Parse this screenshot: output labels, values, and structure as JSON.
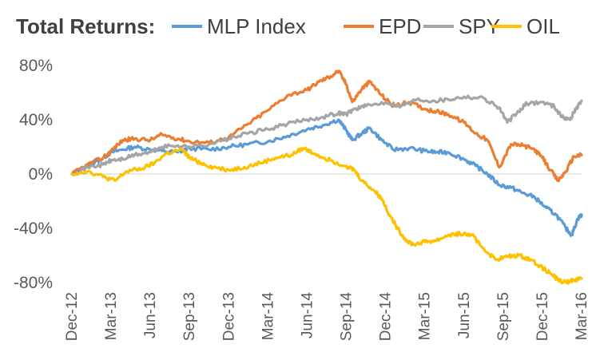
{
  "chart_data": {
    "type": "line",
    "title": "Total Returns:",
    "xlabel": "",
    "ylabel": "",
    "ylim": [
      -0.8,
      0.8
    ],
    "y_ticks": [
      {
        "value": 0.8,
        "label": "80%"
      },
      {
        "value": 0.4,
        "label": "40%"
      },
      {
        "value": 0.0,
        "label": "0%"
      },
      {
        "value": -0.4,
        "label": "-40%"
      },
      {
        "value": -0.8,
        "label": "-80%"
      }
    ],
    "x_ticks": [
      "Dec-12",
      "Mar-13",
      "Jun-13",
      "Sep-13",
      "Dec-13",
      "Mar-14",
      "Jun-14",
      "Sep-14",
      "Dec-14",
      "Mar-15",
      "Jun-15",
      "Sep-15",
      "Dec-15",
      "Mar-16"
    ],
    "x_range": [
      0,
      13
    ],
    "grid": false,
    "legend_position": "top",
    "series": [
      {
        "name": "MLP Index",
        "color": "#5B9BD5",
        "points": [
          [
            0,
            0.0
          ],
          [
            0.4,
            0.06
          ],
          [
            0.8,
            0.12
          ],
          [
            1.0,
            0.16
          ],
          [
            1.3,
            0.18
          ],
          [
            1.6,
            0.2
          ],
          [
            2.0,
            0.18
          ],
          [
            2.3,
            0.17
          ],
          [
            2.7,
            0.16
          ],
          [
            3.0,
            0.19
          ],
          [
            3.5,
            0.18
          ],
          [
            4.0,
            0.2
          ],
          [
            4.5,
            0.22
          ],
          [
            5.0,
            0.24
          ],
          [
            5.5,
            0.28
          ],
          [
            6.0,
            0.33
          ],
          [
            6.4,
            0.36
          ],
          [
            6.8,
            0.4
          ],
          [
            7.0,
            0.32
          ],
          [
            7.15,
            0.25
          ],
          [
            7.4,
            0.3
          ],
          [
            7.6,
            0.34
          ],
          [
            7.9,
            0.25
          ],
          [
            8.2,
            0.18
          ],
          [
            8.6,
            0.19
          ],
          [
            9.0,
            0.17
          ],
          [
            9.3,
            0.16
          ],
          [
            9.6,
            0.16
          ],
          [
            10.0,
            0.11
          ],
          [
            10.3,
            0.06
          ],
          [
            10.6,
            0.0
          ],
          [
            10.9,
            -0.08
          ],
          [
            11.2,
            -0.1
          ],
          [
            11.5,
            -0.14
          ],
          [
            11.8,
            -0.17
          ],
          [
            12.1,
            -0.25
          ],
          [
            12.35,
            -0.3
          ],
          [
            12.6,
            -0.4
          ],
          [
            12.75,
            -0.45
          ],
          [
            12.9,
            -0.33
          ],
          [
            13.0,
            -0.3
          ]
        ]
      },
      {
        "name": "EPD",
        "color": "#ED7D31",
        "points": [
          [
            0,
            0.0
          ],
          [
            0.4,
            0.07
          ],
          [
            0.8,
            0.12
          ],
          [
            1.0,
            0.17
          ],
          [
            1.3,
            0.25
          ],
          [
            1.6,
            0.26
          ],
          [
            2.0,
            0.25
          ],
          [
            2.3,
            0.29
          ],
          [
            2.7,
            0.26
          ],
          [
            3.0,
            0.24
          ],
          [
            3.5,
            0.23
          ],
          [
            4.0,
            0.27
          ],
          [
            4.5,
            0.37
          ],
          [
            5.0,
            0.47
          ],
          [
            5.5,
            0.58
          ],
          [
            6.0,
            0.62
          ],
          [
            6.3,
            0.68
          ],
          [
            6.6,
            0.72
          ],
          [
            6.8,
            0.76
          ],
          [
            7.0,
            0.66
          ],
          [
            7.15,
            0.53
          ],
          [
            7.4,
            0.63
          ],
          [
            7.6,
            0.68
          ],
          [
            7.9,
            0.58
          ],
          [
            8.2,
            0.5
          ],
          [
            8.6,
            0.53
          ],
          [
            9.0,
            0.48
          ],
          [
            9.3,
            0.46
          ],
          [
            9.6,
            0.44
          ],
          [
            10.0,
            0.38
          ],
          [
            10.3,
            0.3
          ],
          [
            10.6,
            0.25
          ],
          [
            10.9,
            0.05
          ],
          [
            11.2,
            0.22
          ],
          [
            11.5,
            0.21
          ],
          [
            11.8,
            0.18
          ],
          [
            12.0,
            0.12
          ],
          [
            12.2,
            0.03
          ],
          [
            12.4,
            -0.05
          ],
          [
            12.6,
            0.02
          ],
          [
            12.8,
            0.13
          ],
          [
            13.0,
            0.14
          ]
        ]
      },
      {
        "name": "SPY",
        "color": "#A5A5A5",
        "points": [
          [
            0,
            0.0
          ],
          [
            0.4,
            0.05
          ],
          [
            0.8,
            0.07
          ],
          [
            1.0,
            0.1
          ],
          [
            1.3,
            0.11
          ],
          [
            1.6,
            0.14
          ],
          [
            2.0,
            0.16
          ],
          [
            2.3,
            0.2
          ],
          [
            2.7,
            0.21
          ],
          [
            3.0,
            0.2
          ],
          [
            3.5,
            0.22
          ],
          [
            4.0,
            0.26
          ],
          [
            4.5,
            0.3
          ],
          [
            5.0,
            0.33
          ],
          [
            5.5,
            0.37
          ],
          [
            6.0,
            0.4
          ],
          [
            6.4,
            0.42
          ],
          [
            6.8,
            0.45
          ],
          [
            7.0,
            0.44
          ],
          [
            7.2,
            0.48
          ],
          [
            7.5,
            0.5
          ],
          [
            8.0,
            0.53
          ],
          [
            8.4,
            0.5
          ],
          [
            8.8,
            0.55
          ],
          [
            9.2,
            0.54
          ],
          [
            9.6,
            0.55
          ],
          [
            10.0,
            0.57
          ],
          [
            10.5,
            0.56
          ],
          [
            10.9,
            0.49
          ],
          [
            11.1,
            0.38
          ],
          [
            11.4,
            0.46
          ],
          [
            11.6,
            0.52
          ],
          [
            12.0,
            0.53
          ],
          [
            12.3,
            0.5
          ],
          [
            12.5,
            0.42
          ],
          [
            12.7,
            0.4
          ],
          [
            12.85,
            0.48
          ],
          [
            13.0,
            0.54
          ]
        ]
      },
      {
        "name": "OIL",
        "color": "#FFC000",
        "points": [
          [
            0,
            0.0
          ],
          [
            0.4,
            0.02
          ],
          [
            0.8,
            -0.02
          ],
          [
            1.1,
            -0.05
          ],
          [
            1.4,
            0.02
          ],
          [
            1.8,
            0.04
          ],
          [
            2.1,
            0.08
          ],
          [
            2.4,
            0.15
          ],
          [
            2.8,
            0.18
          ],
          [
            3.0,
            0.12
          ],
          [
            3.3,
            0.08
          ],
          [
            3.6,
            0.05
          ],
          [
            4.0,
            0.03
          ],
          [
            4.4,
            0.05
          ],
          [
            4.8,
            0.08
          ],
          [
            5.2,
            0.12
          ],
          [
            5.6,
            0.14
          ],
          [
            5.9,
            0.19
          ],
          [
            6.2,
            0.15
          ],
          [
            6.6,
            0.1
          ],
          [
            7.0,
            0.06
          ],
          [
            7.2,
            0.03
          ],
          [
            7.4,
            -0.05
          ],
          [
            7.7,
            -0.12
          ],
          [
            7.9,
            -0.18
          ],
          [
            8.1,
            -0.3
          ],
          [
            8.3,
            -0.4
          ],
          [
            8.5,
            -0.48
          ],
          [
            8.7,
            -0.52
          ],
          [
            9.0,
            -0.5
          ],
          [
            9.3,
            -0.49
          ],
          [
            9.6,
            -0.45
          ],
          [
            9.9,
            -0.44
          ],
          [
            10.2,
            -0.45
          ],
          [
            10.5,
            -0.55
          ],
          [
            10.8,
            -0.63
          ],
          [
            11.1,
            -0.61
          ],
          [
            11.4,
            -0.6
          ],
          [
            11.7,
            -0.63
          ],
          [
            12.0,
            -0.69
          ],
          [
            12.2,
            -0.73
          ],
          [
            12.4,
            -0.78
          ],
          [
            12.6,
            -0.8
          ],
          [
            12.8,
            -0.78
          ],
          [
            13.0,
            -0.77
          ]
        ]
      }
    ]
  }
}
